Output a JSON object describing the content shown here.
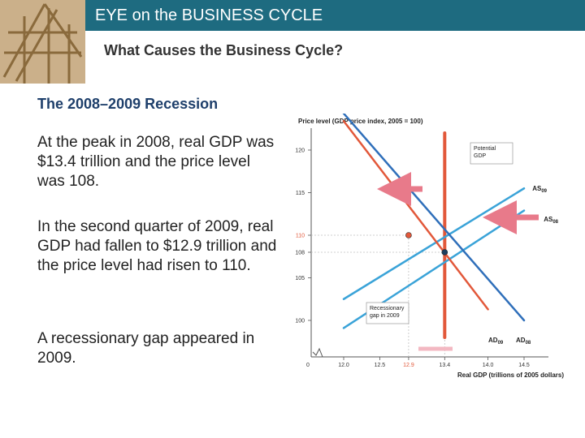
{
  "header": {
    "title": "EYE on the BUSINESS CYCLE",
    "subtitle": "What Causes the Business Cycle?"
  },
  "content": {
    "section_title": "The 2008–2009 Recession",
    "paragraphs": [
      "At the peak in 2008, real GDP was $13.4 trillion and the price level was 108.",
      "In the second quarter of 2009, real GDP had fallen to $12.9 trillion and the price level had risen to 110.",
      "A recessionary gap appeared in 2009."
    ]
  },
  "colors": {
    "header_bar": "#1e6b80",
    "potential_gdp": "#e2583a",
    "ad_curve": "#2f6fba",
    "as_curve": "#3aa3d8",
    "arrow": "#e87a8a",
    "grid": "#c0c0c0"
  },
  "chart_data": {
    "type": "line",
    "ylabel": "Price level (GDP price index, 2005 = 100)",
    "xlabel": "Real GDP (trillions of 2005 dollars)",
    "x_ticks": [
      "0",
      "12.0",
      "12.5",
      "12.9",
      "13.4",
      "14.0",
      "14.5"
    ],
    "y_ticks": [
      "100",
      "105",
      "108",
      "110",
      "115",
      "120"
    ],
    "xlim": [
      12.0,
      14.5
    ],
    "ylim": [
      100,
      120
    ],
    "series": [
      {
        "name": "Potential GDP",
        "x": [
          13.4,
          13.4
        ],
        "y": [
          98,
          122
        ]
      },
      {
        "name": "AS09",
        "x": [
          12.0,
          14.5
        ],
        "y": [
          102.5,
          115.5
        ]
      },
      {
        "name": "AS08",
        "x": [
          12.0,
          14.5
        ],
        "y": [
          99.1,
          112.9
        ]
      },
      {
        "name": "AD09",
        "x": [
          12.0,
          14.0
        ],
        "y": [
          123.4,
          101.3
        ]
      },
      {
        "name": "AD08",
        "x": [
          12.0,
          14.5
        ],
        "y": [
          124.3,
          100.0
        ]
      }
    ],
    "points": [
      {
        "x": 12.9,
        "y": 110
      },
      {
        "x": 13.4,
        "y": 108
      }
    ],
    "annotations": {
      "potential_gdp": "Potential GDP",
      "recessionary_gap": "Recessionary gap in 2009",
      "as09": "AS09",
      "as08": "AS08",
      "ad09": "AD09",
      "ad08": "AD08"
    }
  }
}
